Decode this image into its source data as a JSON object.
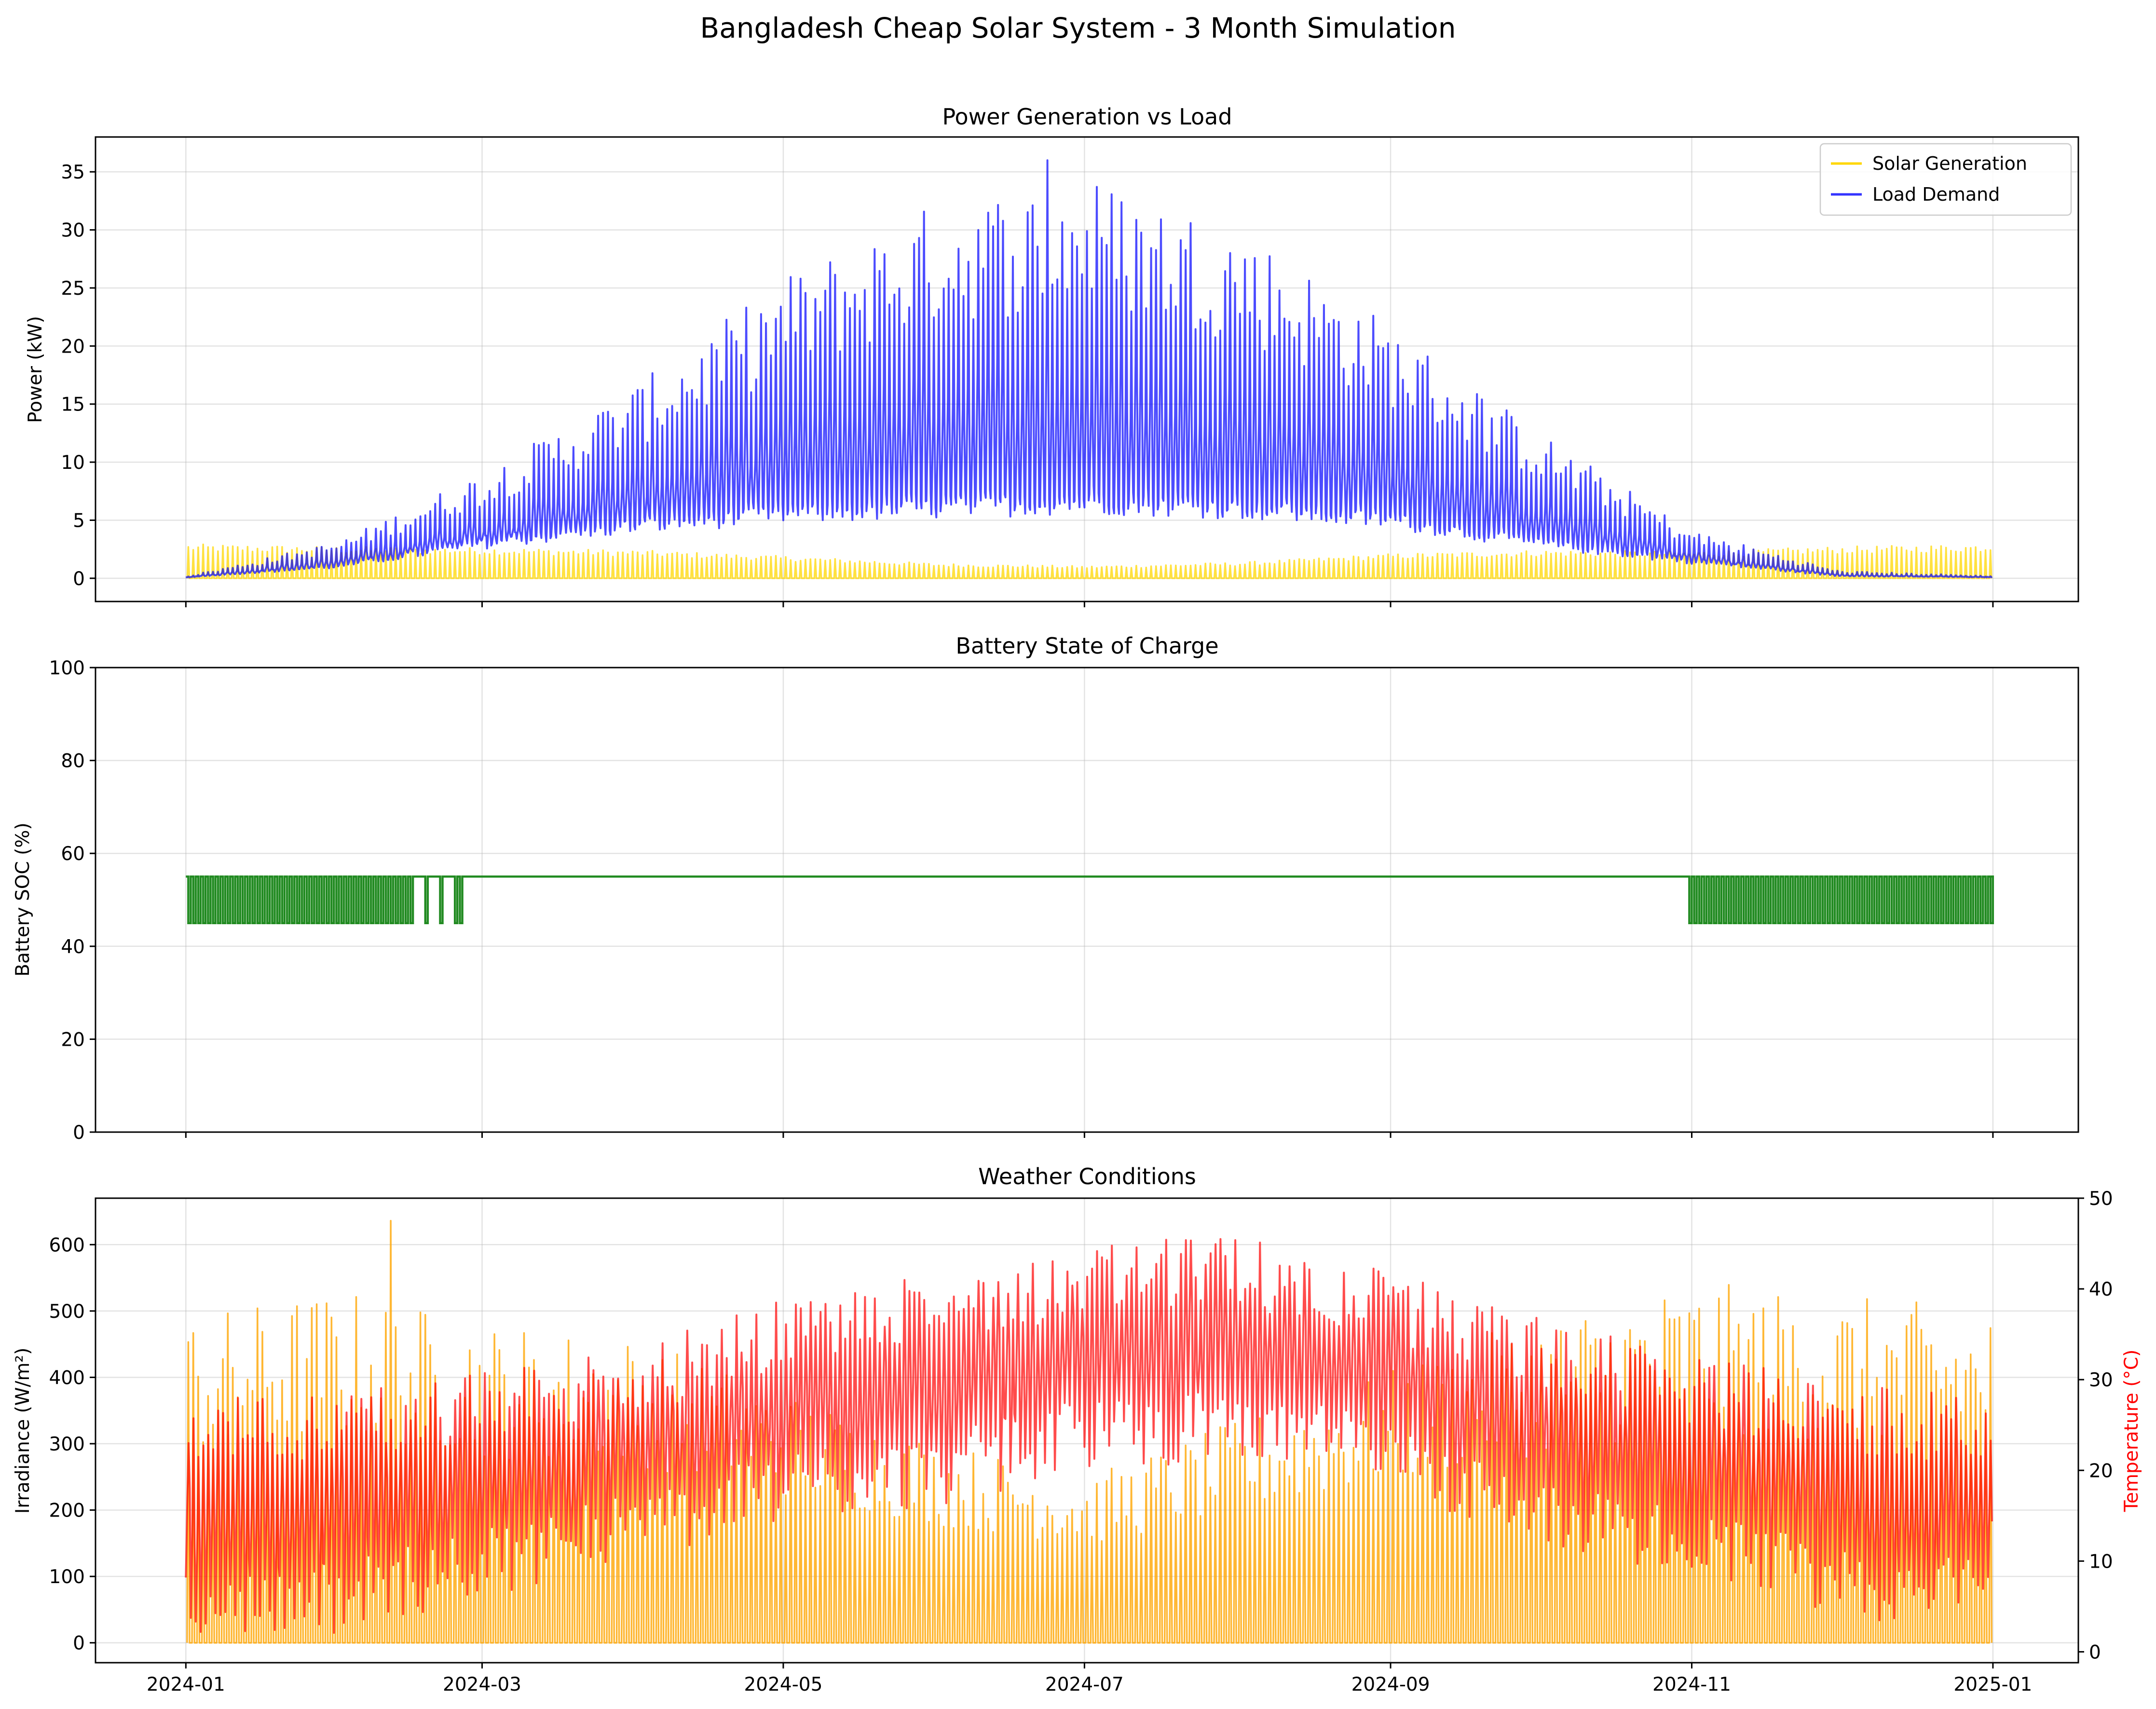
{
  "figure": {
    "title": "Bangladesh Cheap Solar System - 3 Month Simulation"
  },
  "chart_data": [
    {
      "type": "line",
      "title": "Power Generation vs Load",
      "xlabel": "",
      "ylabel": "Power (kW)",
      "ylim": [
        -2,
        38
      ],
      "yticks": [
        0,
        5,
        10,
        15,
        20,
        25,
        30,
        35
      ],
      "x_range": [
        "2024-01-01",
        "2024-12-31"
      ],
      "xticks": [
        "2024-01",
        "2024-03",
        "2024-05",
        "2024-07",
        "2024-09",
        "2024-11",
        "2025-01"
      ],
      "legend_position": "top-right",
      "grid": true,
      "series": [
        {
          "name": "Solar Generation",
          "color": "#FFD700",
          "resolution": "hourly, daily cycle",
          "monthly_daily_peak_kw": [
            2.8,
            2.6,
            2.5,
            2.3,
            1.8,
            1.2,
            1.0,
            1.3,
            2.0,
            2.3,
            2.2,
            2.6,
            2.8
          ]
        },
        {
          "name": "Load Demand",
          "color": "#0000FF",
          "resolution": "hourly, daily cycle",
          "monthly_daily_peak_kw": [
            0.2,
            3.0,
            9.0,
            16.0,
            25.0,
            31.0,
            33.0,
            29.0,
            21.0,
            12.0,
            4.0,
            0.6,
            0.2
          ],
          "monthly_daily_min_kw": [
            0.1,
            1.0,
            3.0,
            4.5,
            5.5,
            6.0,
            6.5,
            6.0,
            5.0,
            3.0,
            1.5,
            0.2,
            0.1
          ],
          "max_kw": 36
        }
      ]
    },
    {
      "type": "line",
      "title": "Battery State of Charge",
      "xlabel": "",
      "ylabel": "Battery SOC (%)",
      "ylim": [
        0,
        100
      ],
      "yticks": [
        0,
        20,
        40,
        60,
        80,
        100
      ],
      "x_range": [
        "2024-01-01",
        "2024-12-31"
      ],
      "grid": true,
      "series": [
        {
          "name": "",
          "color": "#228B22",
          "baseline_soc_percent": 55,
          "daily_dip_soc_percent": 45,
          "dip_periods": [
            [
              "2024-01-01",
              "2024-02-25"
            ],
            [
              "2024-10-31",
              "2024-12-31"
            ]
          ]
        }
      ]
    },
    {
      "type": "line",
      "title": "Weather Conditions",
      "xlabel": "",
      "ylabel": "Irradiance (W/m²)",
      "ylabel_right": "Temperature (°C)",
      "ylim": [
        -30,
        670
      ],
      "yticks": [
        0,
        100,
        200,
        300,
        400,
        500,
        600
      ],
      "ylim_right": [
        -1.2,
        50
      ],
      "yticks_right": [
        0,
        10,
        20,
        30,
        40,
        50
      ],
      "x_range": [
        "2024-01-01",
        "2024-12-31"
      ],
      "xticks": [
        "2024-01",
        "2024-03",
        "2024-05",
        "2024-07",
        "2024-09",
        "2024-11",
        "2025-01"
      ],
      "grid": true,
      "series": [
        {
          "name": "",
          "color": "#FFA500",
          "axis": "left",
          "monthly_daily_peak_wm2": [
            470,
            510,
            460,
            440,
            360,
            290,
            240,
            320,
            390,
            470,
            520,
            500,
            480
          ],
          "max_wm2": 636
        },
        {
          "name": "",
          "color": "#FF0000",
          "axis": "right",
          "monthly_daily_high_c": [
            24,
            25,
            27,
            30,
            35,
            38,
            41,
            42,
            38,
            33,
            29,
            26,
            24
          ],
          "monthly_daily_low_c": [
            5,
            6,
            10,
            14,
            18,
            20,
            24,
            25,
            22,
            15,
            12,
            8,
            6
          ]
        }
      ]
    }
  ]
}
